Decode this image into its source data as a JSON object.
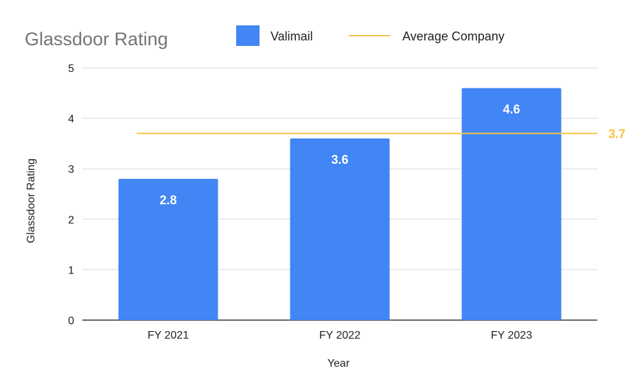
{
  "chart_data": {
    "type": "bar",
    "title": "Glassdoor Rating",
    "xlabel": "Year",
    "ylabel": "Glassdoor Rating",
    "categories": [
      "FY 2021",
      "FY 2022",
      "FY 2023"
    ],
    "series": [
      {
        "name": "Valimail",
        "values": [
          2.8,
          3.6,
          4.6
        ],
        "color": "#4285f4"
      }
    ],
    "reference_line": {
      "name": "Average Company",
      "value": 3.7,
      "label": "3.7",
      "color": "#f6c343"
    },
    "ylim": [
      0,
      5
    ],
    "yticks": [
      0,
      1,
      2,
      3,
      4,
      5
    ],
    "grid": true,
    "legend_position": "top"
  }
}
